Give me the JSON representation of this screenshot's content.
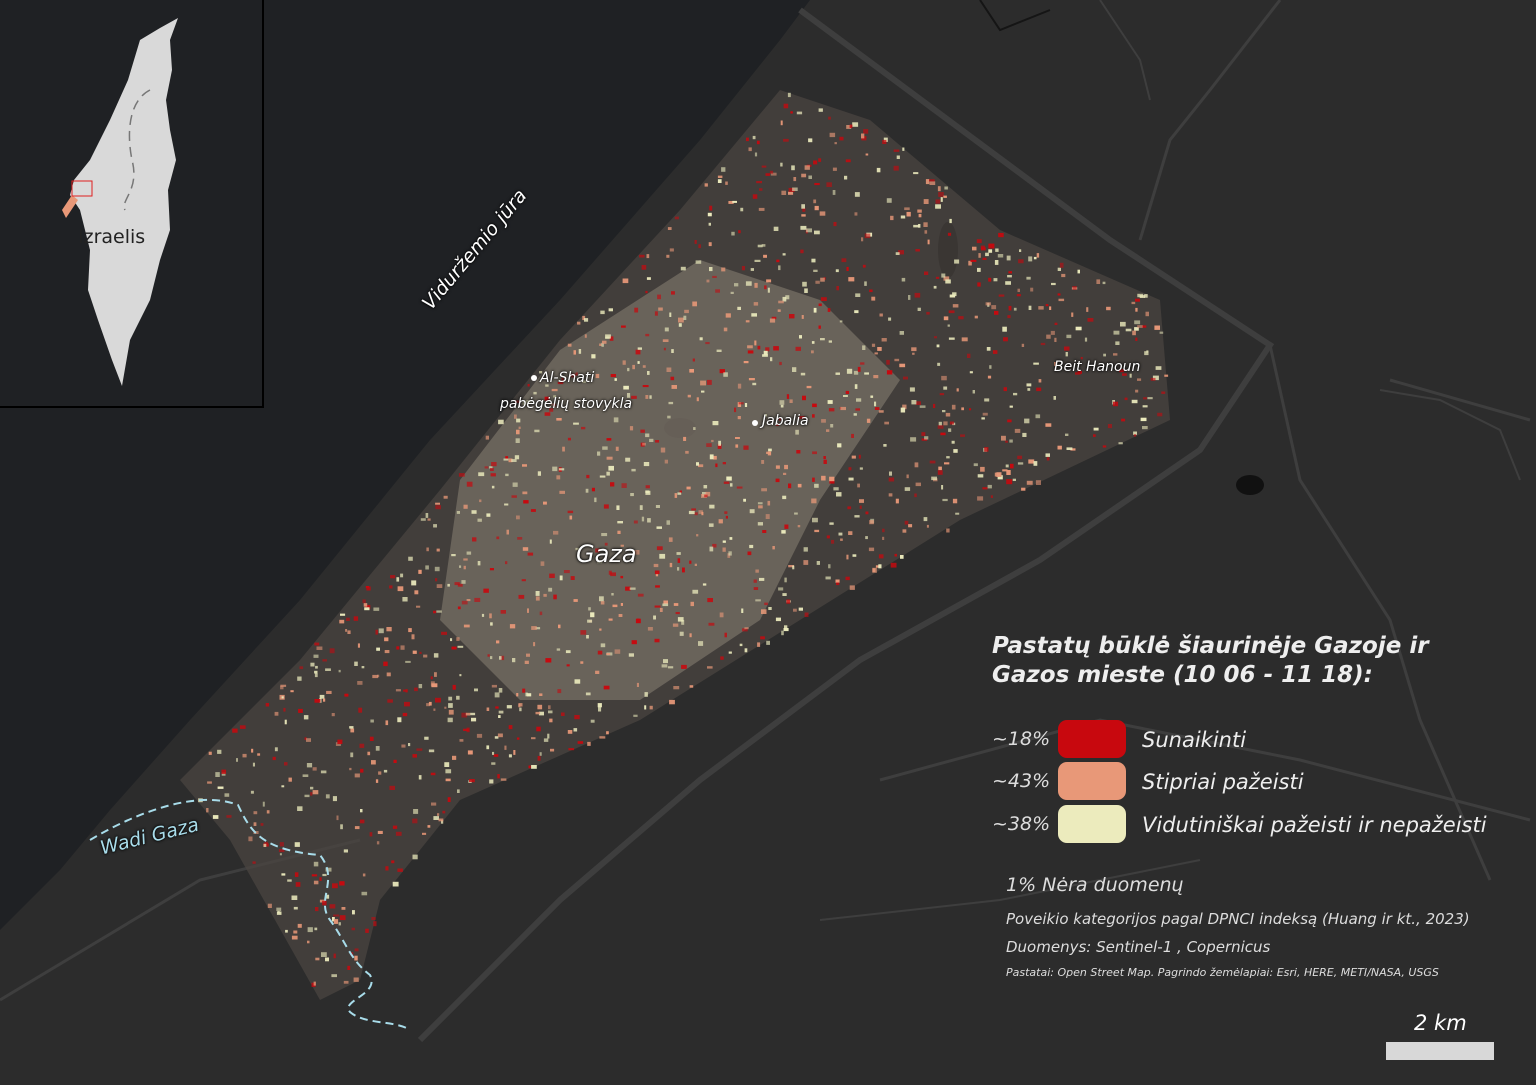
{
  "legend": {
    "title": "Pastatų būklė šiaurinėje Gazoje ir Gazos mieste (10 06 - 11 18):",
    "items": [
      {
        "pct": "~18%",
        "label": "Sunaikinti",
        "color": "#c8080e"
      },
      {
        "pct": "~43%",
        "label": "Stipriai pažeisti",
        "color": "#e89878"
      },
      {
        "pct": "~38%",
        "label": "Vidutiniškai pažeisti ir nepažeisti",
        "color": "#ecebbd"
      }
    ],
    "no_data": "1% Nėra duomenų",
    "note1": "Poveikio kategorijos pagal DPNCI indeksą (Huang ir kt., 2023)",
    "note2": "Duomenys: Sentinel-1 , Copernicus",
    "note3": "Pastatai: Open Street Map. Pagrindo žemėlapiai: Esri, HERE, METI/NASA, USGS"
  },
  "labels": {
    "sea": "Viduržemio jūra",
    "al_shati_1": "Al-Shati",
    "al_shati_2": "pabėgėlių stovykla",
    "jabalia": "Jabalia",
    "beit_hanoun": "Beit Hanoun",
    "gaza": "Gaza",
    "wadi": "Wadi Gaza"
  },
  "inset": {
    "country": "Izraelis"
  },
  "scale": {
    "label": "2 km"
  },
  "colors": {
    "land": "#2c2c2c",
    "sea": "#1f2124",
    "road": "#3f3f3f",
    "destroyed": "#c8080e",
    "severe": "#e89878",
    "moderate": "#ecebbd",
    "wadi": "#a8dcea"
  }
}
